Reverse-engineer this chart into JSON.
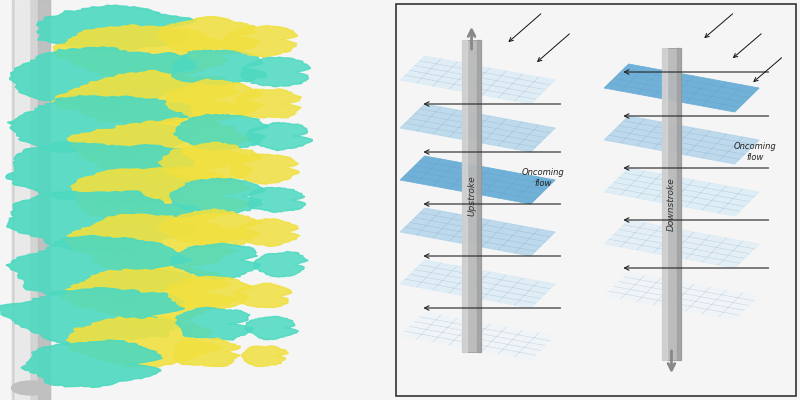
{
  "figure_width": 8.0,
  "figure_height": 4.0,
  "dpi": 100,
  "bg_color": "#f5f5f5",
  "left_panel": {
    "whisker_color": "#cccccc",
    "cyan_color": "#4dd9c0",
    "yellow_color": "#f0e040",
    "bg": "#ffffff"
  },
  "right_panel": {
    "bg": "#ffffff",
    "border_color": "#222222",
    "plate_blue_dark": "#6aaed6",
    "plate_blue_mid": "#a8cfe8",
    "plate_blue_light": "#d0e8f5",
    "plate_white": "#eaf4fb",
    "pillar_color": "#b0b0b0",
    "pillar_dark": "#888888",
    "pillar_light": "#d8d8d8",
    "arrow_color": "#111111",
    "text_color": "#222222",
    "upstroke_label": "Upstroke",
    "downstroke_label": "Downstroke",
    "oncoming_flow_label": "Oncoming\nflow",
    "label_fontsize": 6.5
  }
}
